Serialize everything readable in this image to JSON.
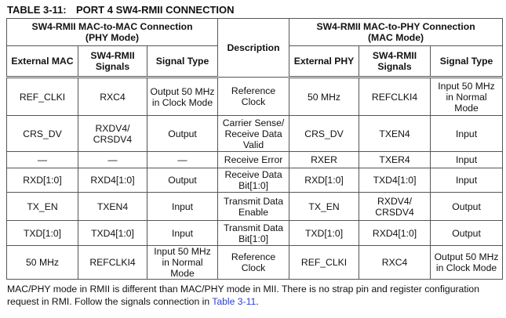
{
  "title": {
    "number": "TABLE 3-11:",
    "text": "PORT 4 SW4-RMII CONNECTION"
  },
  "headers": {
    "group_left": [
      "SW4-RMII MAC-to-MAC Connection",
      "(PHY Mode)"
    ],
    "description": "Description",
    "group_right": [
      "SW4-RMII MAC-to-PHY Connection",
      "(MAC Mode)"
    ],
    "columns": [
      "External MAC",
      [
        "SW4-RMII",
        "Signals"
      ],
      "Signal Type",
      "External PHY",
      [
        "SW4-RMII",
        "Signals"
      ],
      "Signal Type"
    ]
  },
  "rows": [
    [
      [
        "REF_CLKI"
      ],
      [
        "RXC4"
      ],
      [
        "Output 50 MHz",
        "in Clock Mode"
      ],
      [
        "Reference",
        "Clock"
      ],
      [
        "50 MHz"
      ],
      [
        "REFCLKI4"
      ],
      [
        "Input 50 MHz",
        "in Normal",
        "Mode"
      ]
    ],
    [
      [
        "CRS_DV"
      ],
      [
        "RXDV4/",
        "CRSDV4"
      ],
      [
        "Output"
      ],
      [
        "Carrier Sense/",
        "Receive Data",
        "Valid"
      ],
      [
        "CRS_DV"
      ],
      [
        "TXEN4"
      ],
      [
        "Input"
      ]
    ],
    [
      [
        "—"
      ],
      [
        "—"
      ],
      [
        "—"
      ],
      [
        "Receive Error"
      ],
      [
        "RXER"
      ],
      [
        "TXER4"
      ],
      [
        "Input"
      ]
    ],
    [
      [
        "RXD[1:0]"
      ],
      [
        "RXD4[1:0]"
      ],
      [
        "Output"
      ],
      [
        "Receive Data",
        "Bit[1:0]"
      ],
      [
        "RXD[1:0]"
      ],
      [
        "TXD4[1:0]"
      ],
      [
        "Input"
      ]
    ],
    [
      [
        "TX_EN"
      ],
      [
        "TXEN4"
      ],
      [
        "Input"
      ],
      [
        "Transmit Data",
        "Enable"
      ],
      [
        "TX_EN"
      ],
      [
        "RXDV4/",
        "CRSDV4"
      ],
      [
        "Output"
      ]
    ],
    [
      [
        "TXD[1:0]"
      ],
      [
        "TXD4[1:0]"
      ],
      [
        "Input"
      ],
      [
        "Transmit Data",
        "Bit[1:0]"
      ],
      [
        "TXD[1:0]"
      ],
      [
        "RXD4[1:0]"
      ],
      [
        "Output"
      ]
    ],
    [
      [
        "50 MHz"
      ],
      [
        "REFCLKI4"
      ],
      [
        "Input 50 MHz",
        "in Normal",
        "Mode"
      ],
      [
        "Reference",
        "Clock"
      ],
      [
        "REF_CLKI"
      ],
      [
        "RXC4"
      ],
      [
        "Output 50 MHz",
        "in Clock Mode"
      ]
    ]
  ],
  "note": {
    "text": "MAC/PHY mode in RMII is different than MAC/PHY mode in MII. There is no strap pin and register configuration request in RMI. Follow the signals connection in ",
    "link": "Table 3-11",
    "end": "."
  }
}
